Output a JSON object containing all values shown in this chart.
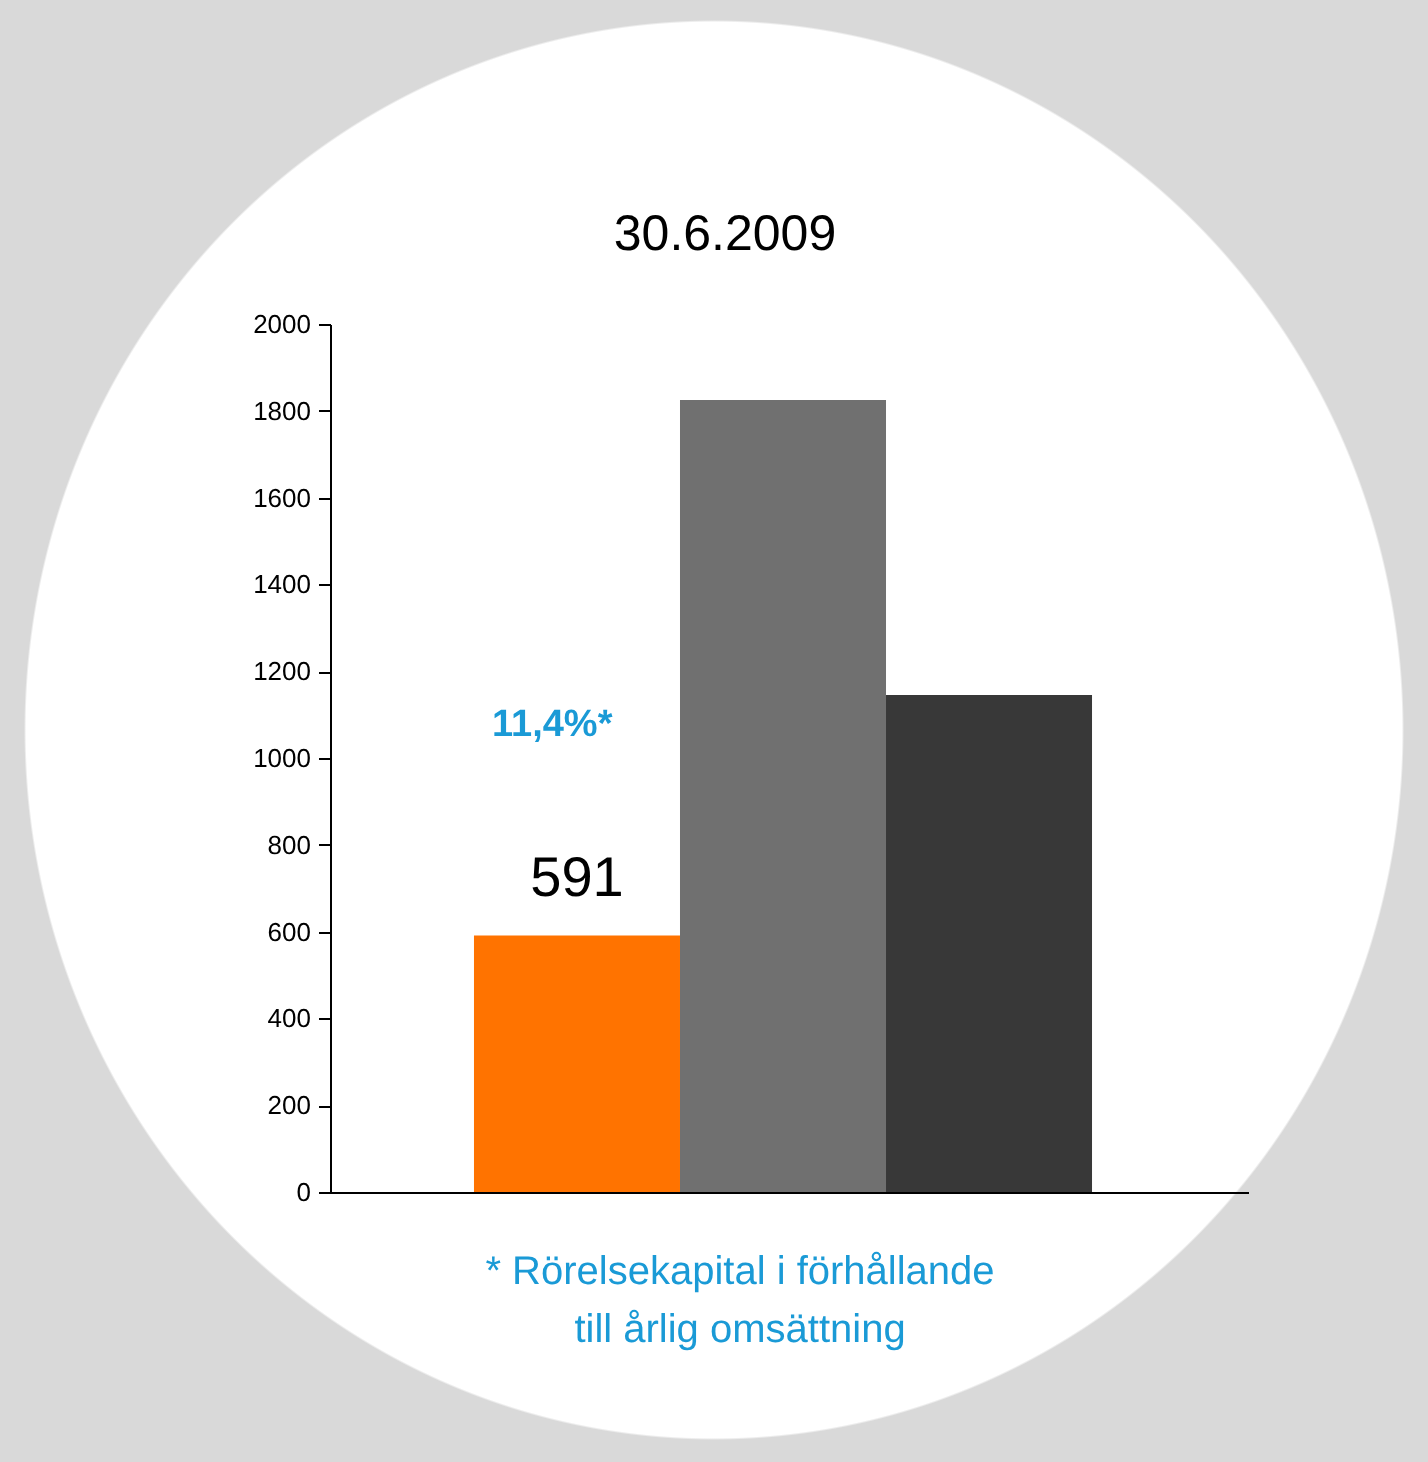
{
  "chart_data": {
    "type": "bar",
    "title": "30.6.2009",
    "categories": [
      null,
      null,
      null
    ],
    "values": [
      591,
      1825,
      1145
    ],
    "colors": [
      "#ff7300",
      "#707070",
      "#383838"
    ],
    "value_labels": [
      "591",
      null,
      null
    ],
    "ylim": [
      0,
      2000
    ],
    "yticks": [
      0,
      200,
      400,
      600,
      800,
      1000,
      1200,
      1400,
      1600,
      1800,
      2000
    ],
    "grid": false,
    "legend": false,
    "annotations": [
      "11,4%*",
      "* Rörelsekapital i förhållande\ntill årlig omsättning"
    ]
  }
}
